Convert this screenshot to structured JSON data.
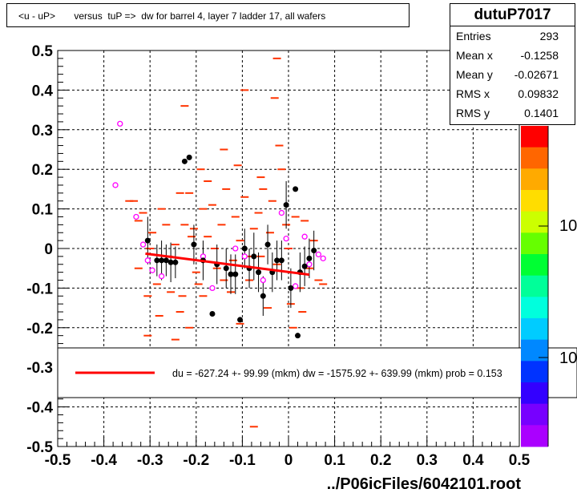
{
  "title": "<u - uP>       versus  tuP =>  dw for barrel 4, layer 7 ladder 17, all wafers",
  "stats": {
    "name": "dutuP7017",
    "rows": [
      {
        "label": "Entries",
        "value": "293"
      },
      {
        "label": "Mean x",
        "value": "-0.1258"
      },
      {
        "label": "Mean y",
        "value": "-0.02671"
      },
      {
        "label": "RMS x",
        "value": "0.09832"
      },
      {
        "label": "RMS y",
        "value": "0.1401"
      }
    ]
  },
  "fit_legend": "du = -627.24 +- 99.99 (mkm) dw = -1575.92 +- 639.99 (mkm) prob = 0.153",
  "footer": "../P06icFiles/6042101.root",
  "palette_labels": [
    "10",
    "10"
  ],
  "colors": {
    "histogram_marks": "#ff3300",
    "profile_points": "#000000",
    "open_points": "#ff00ff",
    "fit_line": "#ff0000",
    "grid": "#000000"
  },
  "chart_data": {
    "type": "scatter",
    "xlim": [
      -0.5,
      0.5
    ],
    "ylim": [
      -0.5,
      0.5
    ],
    "x_ticks": [
      "-0.5",
      "-0.4",
      "-0.3",
      "-0.2",
      "-0.1",
      "0",
      "0.1",
      "0.2",
      "0.3",
      "0.4",
      "0.5"
    ],
    "y_ticks": [
      "-0.5",
      "-0.4",
      "-0.3",
      "-0.2",
      "-0.1",
      "0",
      "0.1",
      "0.2",
      "0.3",
      "0.4",
      "0.5"
    ],
    "grid": true,
    "fit_line": {
      "x": [
        -0.31,
        0.045
      ],
      "y": [
        -0.013,
        -0.066
      ]
    },
    "profile_points": [
      {
        "x": -0.305,
        "y": 0.02,
        "err": 0.06
      },
      {
        "x": -0.285,
        "y": -0.03,
        "err": 0.04
      },
      {
        "x": -0.275,
        "y": -0.03,
        "err": 0.05
      },
      {
        "x": -0.265,
        "y": -0.03,
        "err": 0.04
      },
      {
        "x": -0.255,
        "y": -0.035,
        "err": 0.05
      },
      {
        "x": -0.245,
        "y": -0.035,
        "err": 0.04
      },
      {
        "x": -0.225,
        "y": 0.22,
        "err": 0.0
      },
      {
        "x": -0.215,
        "y": 0.23,
        "err": 0.0
      },
      {
        "x": -0.205,
        "y": 0.01,
        "err": 0.05
      },
      {
        "x": -0.185,
        "y": -0.03,
        "err": 0.05
      },
      {
        "x": -0.165,
        "y": -0.165,
        "err": 0.0
      },
      {
        "x": -0.155,
        "y": -0.04,
        "err": 0.05
      },
      {
        "x": -0.135,
        "y": -0.05,
        "err": 0.05
      },
      {
        "x": -0.125,
        "y": -0.065,
        "err": 0.05
      },
      {
        "x": -0.115,
        "y": -0.065,
        "err": 0.05
      },
      {
        "x": -0.105,
        "y": -0.18,
        "err": 0.0
      },
      {
        "x": -0.095,
        "y": 0.0,
        "err": 0.05
      },
      {
        "x": -0.085,
        "y": -0.05,
        "err": 0.05
      },
      {
        "x": -0.075,
        "y": -0.02,
        "err": 0.06
      },
      {
        "x": -0.065,
        "y": -0.06,
        "err": 0.05
      },
      {
        "x": -0.055,
        "y": -0.12,
        "err": 0.05
      },
      {
        "x": -0.045,
        "y": 0.01,
        "err": 0.05
      },
      {
        "x": -0.035,
        "y": -0.06,
        "err": 0.05
      },
      {
        "x": -0.025,
        "y": -0.03,
        "err": 0.05
      },
      {
        "x": -0.015,
        "y": -0.03,
        "err": 0.05
      },
      {
        "x": -0.005,
        "y": 0.11,
        "err": 0.06
      },
      {
        "x": 0.005,
        "y": -0.1,
        "err": 0.05
      },
      {
        "x": 0.015,
        "y": 0.15,
        "err": 0.0
      },
      {
        "x": 0.02,
        "y": -0.22,
        "err": 0.0
      },
      {
        "x": 0.025,
        "y": -0.06,
        "err": 0.05
      },
      {
        "x": 0.035,
        "y": -0.045,
        "err": 0.05
      },
      {
        "x": 0.045,
        "y": -0.025,
        "err": 0.05
      },
      {
        "x": 0.055,
        "y": -0.005,
        "err": 0.05
      }
    ],
    "open_points": [
      {
        "x": -0.375,
        "y": 0.16
      },
      {
        "x": -0.365,
        "y": 0.315
      },
      {
        "x": -0.33,
        "y": 0.08
      },
      {
        "x": -0.315,
        "y": 0.01
      },
      {
        "x": -0.305,
        "y": -0.03
      },
      {
        "x": -0.295,
        "y": -0.055
      },
      {
        "x": -0.275,
        "y": -0.07
      },
      {
        "x": -0.185,
        "y": -0.02
      },
      {
        "x": -0.165,
        "y": -0.1
      },
      {
        "x": -0.115,
        "y": 0.0
      },
      {
        "x": -0.095,
        "y": -0.02
      },
      {
        "x": -0.055,
        "y": -0.08
      },
      {
        "x": -0.015,
        "y": 0.09
      },
      {
        "x": -0.005,
        "y": 0.025
      },
      {
        "x": 0.015,
        "y": -0.095
      },
      {
        "x": 0.035,
        "y": 0.03
      },
      {
        "x": 0.045,
        "y": -0.04
      },
      {
        "x": 0.065,
        "y": -0.015
      },
      {
        "x": 0.075,
        "y": -0.025
      }
    ],
    "hist_marks": [
      {
        "x": -0.345,
        "y": 0.12
      },
      {
        "x": -0.335,
        "y": 0.12
      },
      {
        "x": -0.325,
        "y": 0.07
      },
      {
        "x": -0.325,
        "y": -0.05
      },
      {
        "x": -0.315,
        "y": 0.09
      },
      {
        "x": -0.305,
        "y": -0.22
      },
      {
        "x": -0.305,
        "y": -0.12
      },
      {
        "x": -0.295,
        "y": 0.04
      },
      {
        "x": -0.285,
        "y": -0.09
      },
      {
        "x": -0.275,
        "y": 0.1
      },
      {
        "x": -0.265,
        "y": 0.06
      },
      {
        "x": -0.255,
        "y": -0.11
      },
      {
        "x": -0.245,
        "y": 0.01
      },
      {
        "x": -0.245,
        "y": -0.23
      },
      {
        "x": -0.235,
        "y": 0.14
      },
      {
        "x": -0.235,
        "y": -0.16
      },
      {
        "x": -0.225,
        "y": 0.36
      },
      {
        "x": -0.225,
        "y": 0.06
      },
      {
        "x": -0.215,
        "y": 0.14
      },
      {
        "x": -0.215,
        "y": -0.2
      },
      {
        "x": -0.205,
        "y": 0.05
      },
      {
        "x": -0.195,
        "y": -0.09
      },
      {
        "x": -0.185,
        "y": 0.1
      },
      {
        "x": -0.185,
        "y": -0.12
      },
      {
        "x": -0.175,
        "y": 0.17
      },
      {
        "x": -0.175,
        "y": 0.03
      },
      {
        "x": -0.165,
        "y": 0.11
      },
      {
        "x": -0.155,
        "y": -0.05
      },
      {
        "x": -0.145,
        "y": 0.06
      },
      {
        "x": -0.135,
        "y": 0.15
      },
      {
        "x": -0.125,
        "y": -0.11
      },
      {
        "x": -0.115,
        "y": 0.08
      },
      {
        "x": -0.105,
        "y": 0.02
      },
      {
        "x": -0.105,
        "y": -0.19
      },
      {
        "x": -0.095,
        "y": 0.13
      },
      {
        "x": -0.085,
        "y": -0.08
      },
      {
        "x": -0.075,
        "y": 0.05
      },
      {
        "x": -0.075,
        "y": -0.45
      },
      {
        "x": -0.065,
        "y": 0.09
      },
      {
        "x": -0.055,
        "y": 0.15
      },
      {
        "x": -0.045,
        "y": -0.15
      },
      {
        "x": -0.035,
        "y": 0.12
      },
      {
        "x": -0.025,
        "y": 0.48
      },
      {
        "x": -0.025,
        "y": -0.04
      },
      {
        "x": -0.015,
        "y": 0.2
      },
      {
        "x": -0.005,
        "y": 0.06
      },
      {
        "x": 0.005,
        "y": -0.14
      },
      {
        "x": 0.015,
        "y": 0.08
      },
      {
        "x": 0.025,
        "y": -0.1
      },
      {
        "x": 0.035,
        "y": 0.07
      },
      {
        "x": 0.045,
        "y": -0.05
      },
      {
        "x": 0.055,
        "y": 0.02
      },
      {
        "x": 0.065,
        "y": -0.08
      },
      {
        "x": 0.075,
        "y": -0.09
      },
      {
        "x": -0.095,
        "y": 0.4
      },
      {
        "x": -0.03,
        "y": 0.38
      },
      {
        "x": -0.14,
        "y": 0.25
      },
      {
        "x": -0.06,
        "y": 0.18
      },
      {
        "x": -0.21,
        "y": 0.03
      },
      {
        "x": -0.12,
        "y": -0.03
      },
      {
        "x": -0.08,
        "y": -0.02
      },
      {
        "x": -0.16,
        "y": 0.0
      },
      {
        "x": -0.04,
        "y": 0.04
      },
      {
        "x": 0.0,
        "y": 0.0
      },
      {
        "x": -0.3,
        "y": 0.0
      },
      {
        "x": -0.26,
        "y": -0.02
      },
      {
        "x": -0.2,
        "y": -0.06
      },
      {
        "x": -0.14,
        "y": -0.08
      },
      {
        "x": -0.06,
        "y": -0.02
      },
      {
        "x": 0.01,
        "y": -0.2
      },
      {
        "x": -0.02,
        "y": 0.26
      },
      {
        "x": -0.11,
        "y": 0.21
      },
      {
        "x": -0.19,
        "y": 0.2
      },
      {
        "x": -0.23,
        "y": -0.12
      },
      {
        "x": -0.28,
        "y": -0.17
      },
      {
        "x": 0.03,
        "y": -0.16
      }
    ]
  }
}
